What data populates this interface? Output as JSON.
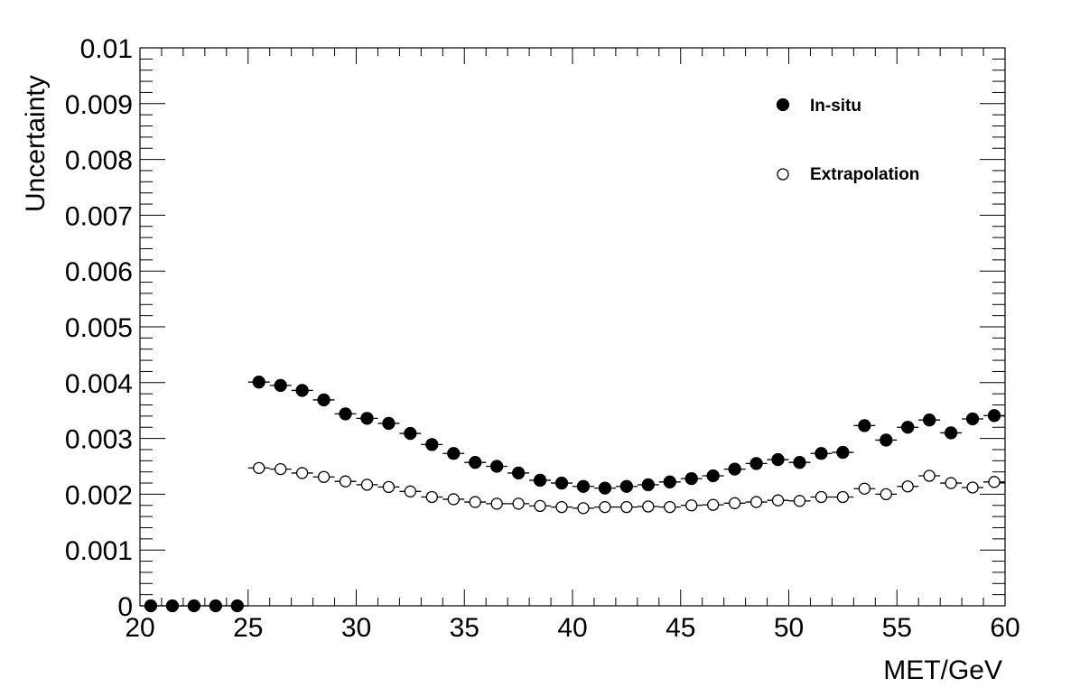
{
  "chart_data": {
    "type": "scatter",
    "title": "",
    "xlabel": "MET/GeV",
    "ylabel": "Uncertainty",
    "xlim": [
      20,
      60
    ],
    "ylim": [
      0,
      0.01
    ],
    "x_ticks": [
      "20",
      "25",
      "30",
      "35",
      "40",
      "45",
      "50",
      "55",
      "60"
    ],
    "y_ticks": [
      "0",
      "0.001",
      "0.002",
      "0.003",
      "0.004",
      "0.005",
      "0.006",
      "0.007",
      "0.008",
      "0.009",
      "0.01"
    ],
    "bin_width": 1,
    "grid": false,
    "legend_position": "top-right",
    "series": [
      {
        "name": "In-situ",
        "marker": "filled-circle",
        "color": "#000000",
        "x": [
          20.5,
          21.5,
          22.5,
          23.5,
          24.5,
          25.5,
          26.5,
          27.5,
          28.5,
          29.5,
          30.5,
          31.5,
          32.5,
          33.5,
          34.5,
          35.5,
          36.5,
          37.5,
          38.5,
          39.5,
          40.5,
          41.5,
          42.5,
          43.5,
          44.5,
          45.5,
          46.5,
          47.5,
          48.5,
          49.5,
          50.5,
          51.5,
          52.5,
          53.5,
          54.5,
          55.5,
          56.5,
          57.5,
          58.5,
          59.5
        ],
        "values": [
          0,
          0,
          0,
          0,
          0,
          0.00401,
          0.00395,
          0.00386,
          0.00369,
          0.00344,
          0.00336,
          0.00327,
          0.00309,
          0.00289,
          0.00273,
          0.00257,
          0.0025,
          0.00238,
          0.00225,
          0.0022,
          0.00214,
          0.00211,
          0.00214,
          0.00217,
          0.00222,
          0.00228,
          0.00233,
          0.00245,
          0.00255,
          0.00262,
          0.00257,
          0.00273,
          0.00275,
          0.00323,
          0.00297,
          0.0032,
          0.00333,
          0.0031,
          0.00335,
          0.00341
        ]
      },
      {
        "name": "Extrapolation",
        "marker": "open-circle",
        "color": "#000000",
        "x": [
          25.5,
          26.5,
          27.5,
          28.5,
          29.5,
          30.5,
          31.5,
          32.5,
          33.5,
          34.5,
          35.5,
          36.5,
          37.5,
          38.5,
          39.5,
          40.5,
          41.5,
          42.5,
          43.5,
          44.5,
          45.5,
          46.5,
          47.5,
          48.5,
          49.5,
          50.5,
          51.5,
          52.5,
          53.5,
          54.5,
          55.5,
          56.5,
          57.5,
          58.5,
          59.5
        ],
        "values": [
          0.00247,
          0.00245,
          0.00238,
          0.00231,
          0.00223,
          0.00217,
          0.00213,
          0.00205,
          0.00195,
          0.00191,
          0.00186,
          0.00183,
          0.00183,
          0.00179,
          0.00177,
          0.00175,
          0.00177,
          0.00177,
          0.00178,
          0.00177,
          0.0018,
          0.00181,
          0.00184,
          0.00186,
          0.00189,
          0.00188,
          0.00195,
          0.00195,
          0.0021,
          0.002,
          0.00214,
          0.00233,
          0.0022,
          0.00212,
          0.00222
        ]
      }
    ]
  }
}
